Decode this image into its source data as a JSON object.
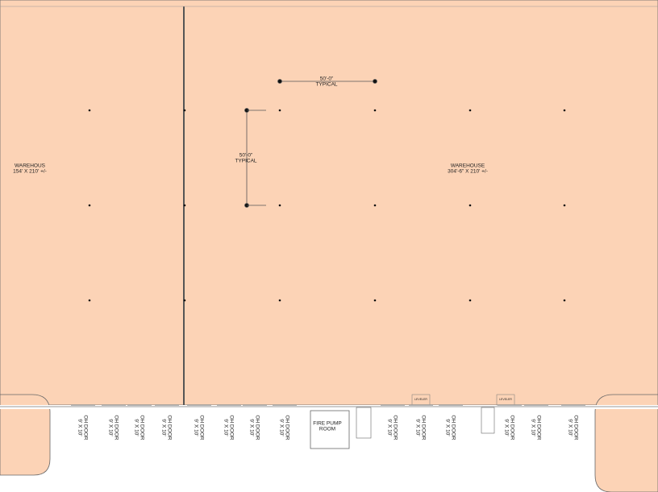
{
  "rooms": [
    {
      "name": "WAREHOUS",
      "size": "154' X 210' +/-"
    },
    {
      "name": "WAREHOUSE",
      "size": "304'-6\" X 210' +/-"
    }
  ],
  "dimensions": [
    {
      "value": "50'-0\"",
      "note": "TYPICAL"
    },
    {
      "value": "50'-0\"",
      "note": "TYPICAL"
    }
  ],
  "fire_pump_room": [
    "FIRE PUMP",
    "ROOM"
  ],
  "doors": [
    {
      "label": "OH DOOR",
      "size": "9' X 10'"
    },
    {
      "label": "OH DOOR",
      "size": "9' X 10'"
    },
    {
      "label": "OH DOOR",
      "size": "9' X 10'"
    },
    {
      "label": "OH DOOR",
      "size": "9' X 10'"
    },
    {
      "label": "OH DOOR",
      "size": "9' X 10'"
    },
    {
      "label": "OH DOOR",
      "size": "9' X 10'"
    },
    {
      "label": "OH DOOR",
      "size": "9' X 10'"
    },
    {
      "label": "OH DOOR",
      "size": "9' X 10'"
    },
    {
      "label": "OH DOOR",
      "size": "9' X 10'"
    },
    {
      "label": "OH DOOR",
      "size": "9' X 10'"
    },
    {
      "label": "OH DOOR",
      "size": "9' X 10'"
    },
    {
      "label": "OH DOOR",
      "size": "9' X 10'"
    },
    {
      "label": "OH DOOR",
      "size": "9' X 10'"
    },
    {
      "label": "OH DOOR",
      "size": "9' X 10'"
    }
  ],
  "levelers": [
    "LEVELER",
    "LEVELER"
  ]
}
